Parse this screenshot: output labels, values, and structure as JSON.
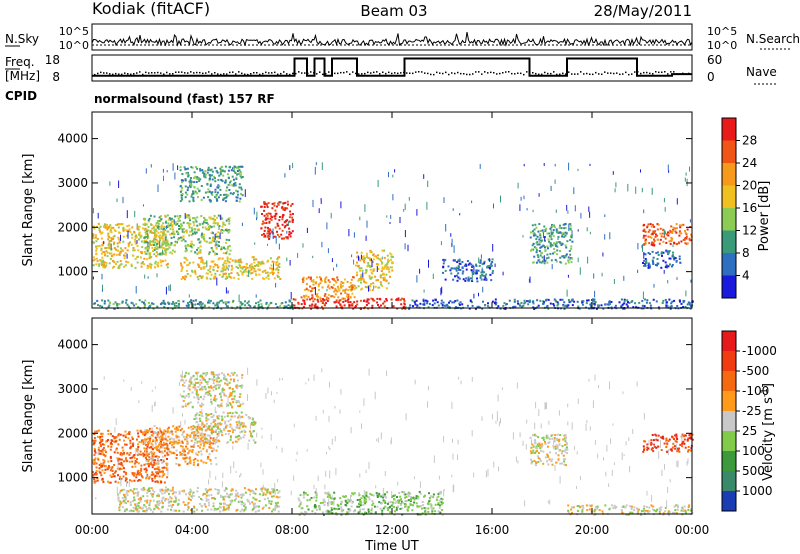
{
  "header": {
    "station": "Kodiak (fitACF)",
    "beam": "Beam 03",
    "date": "28/May/2011"
  },
  "nsky_panel": {
    "left_label": "N.Sky",
    "left_ticks": [
      "10^5",
      "10^0"
    ],
    "right_label": "N.Search",
    "right_ticks": [
      "10^5",
      "10^0"
    ]
  },
  "freq_panel": {
    "left_label_1": "Freq.",
    "left_label_2": "[MHz]",
    "left_ticks": [
      "18",
      "8"
    ],
    "right_label": "Nave",
    "right_ticks": [
      "60",
      "0"
    ],
    "cpid_label": "CPID",
    "program": "normalsound (fast) 157 RF",
    "nave_steps": [
      {
        "t0": 0.0,
        "t1": 8.1,
        "v": 12
      },
      {
        "t0": 8.1,
        "t1": 8.6,
        "v": 52
      },
      {
        "t0": 8.6,
        "t1": 8.9,
        "v": 12
      },
      {
        "t0": 8.9,
        "t1": 9.3,
        "v": 52
      },
      {
        "t0": 9.3,
        "t1": 9.6,
        "v": 12
      },
      {
        "t0": 9.6,
        "t1": 10.6,
        "v": 52
      },
      {
        "t0": 10.6,
        "t1": 12.5,
        "v": 12
      },
      {
        "t0": 12.5,
        "t1": 17.5,
        "v": 52
      },
      {
        "t0": 17.5,
        "t1": 19.0,
        "v": 12
      },
      {
        "t0": 19.0,
        "t1": 21.8,
        "v": 52
      },
      {
        "t0": 21.8,
        "t1": 23.2,
        "v": 12
      },
      {
        "t0": 23.2,
        "t1": 24.0,
        "v": 16
      }
    ]
  },
  "chart_data": [
    {
      "type": "heatmap",
      "xlabel": "",
      "ylabel": "Slant Range [km]",
      "x_ticks": [
        "00:00",
        "04:00",
        "08:00",
        "12:00",
        "16:00",
        "20:00",
        "00:00"
      ],
      "xlim": [
        0,
        24
      ],
      "ylim": [
        180,
        4600
      ],
      "y_ticks": [
        "1000",
        "2000",
        "3000",
        "4000"
      ],
      "colorbar": {
        "label": "Power [dB]",
        "ticks": [
          "4",
          "8",
          "12",
          "16",
          "20",
          "24",
          "28"
        ],
        "colors": [
          "#1a1adc",
          "#2f6fc1",
          "#3a9a7a",
          "#8ccc55",
          "#f0c020",
          "#f59a1a",
          "#f05515",
          "#e81a1a"
        ]
      },
      "regions": [
        {
          "t0": 0.0,
          "t1": 8.0,
          "r0": 180,
          "r1": 380,
          "level": 2
        },
        {
          "t0": 8.0,
          "t1": 12.5,
          "r0": 180,
          "r1": 420,
          "level": 7
        },
        {
          "t0": 12.5,
          "t1": 24.0,
          "r0": 180,
          "r1": 400,
          "level": 1
        },
        {
          "t0": 0.0,
          "t1": 3.0,
          "r0": 1100,
          "r1": 2100,
          "level": 4
        },
        {
          "t0": 2.0,
          "t1": 5.5,
          "r0": 1400,
          "r1": 2300,
          "level": 3
        },
        {
          "t0": 3.5,
          "t1": 7.5,
          "r0": 850,
          "r1": 1350,
          "level": 4
        },
        {
          "t0": 6.7,
          "t1": 8.0,
          "r0": 1750,
          "r1": 2600,
          "level": 7
        },
        {
          "t0": 3.5,
          "t1": 6.0,
          "r0": 2600,
          "r1": 3400,
          "level": 2
        },
        {
          "t0": 8.3,
          "t1": 10.5,
          "r0": 400,
          "r1": 900,
          "level": 5
        },
        {
          "t0": 10.5,
          "t1": 12.0,
          "r0": 600,
          "r1": 1500,
          "level": 4
        },
        {
          "t0": 14.0,
          "t1": 16.0,
          "r0": 800,
          "r1": 1300,
          "level": 1
        },
        {
          "t0": 17.5,
          "t1": 19.2,
          "r0": 1200,
          "r1": 2100,
          "level": 2
        },
        {
          "t0": 22.0,
          "t1": 24.0,
          "r0": 1600,
          "r1": 2100,
          "level": 6
        },
        {
          "t0": 22.0,
          "t1": 23.5,
          "r0": 1100,
          "r1": 1500,
          "level": 1
        }
      ]
    },
    {
      "type": "heatmap",
      "xlabel": "Time UT",
      "ylabel": "Slant Range [km]",
      "x_ticks": [
        "00:00",
        "04:00",
        "08:00",
        "12:00",
        "16:00",
        "20:00",
        "00:00"
      ],
      "xlim": [
        0,
        24
      ],
      "ylim": [
        180,
        4600
      ],
      "y_ticks": [
        "1000",
        "2000",
        "3000",
        "4000"
      ],
      "colorbar": {
        "label": "Velocity [m s",
        "label_sup": "-1",
        "label_end": "]",
        "ticks": [
          "1000",
          "500",
          "100",
          "25",
          "-25",
          "-100",
          "-500",
          "-1000"
        ],
        "colors": [
          "#1a3cb4",
          "#3a8a6a",
          "#3c9a3c",
          "#80cc4a",
          "#c8c8c8",
          "#ff9a1a",
          "#f56a10",
          "#f03c10",
          "#e61a1a"
        ]
      },
      "regions": [
        {
          "t0": 0.0,
          "t1": 3.0,
          "r0": 900,
          "r1": 2100,
          "level": 6
        },
        {
          "t0": 2.0,
          "t1": 5.0,
          "r0": 1300,
          "r1": 2200,
          "level": 5
        },
        {
          "t0": 4.0,
          "t1": 6.5,
          "r0": 1800,
          "r1": 2500,
          "level": 4
        },
        {
          "t0": 1.0,
          "t1": 7.5,
          "r0": 250,
          "r1": 800,
          "level": 4
        },
        {
          "t0": 3.5,
          "t1": 6.0,
          "r0": 2600,
          "r1": 3400,
          "level": 4
        },
        {
          "t0": 8.2,
          "t1": 14.0,
          "r0": 180,
          "r1": 700,
          "level": 3
        },
        {
          "t0": 17.5,
          "t1": 19.0,
          "r0": 1300,
          "r1": 2000,
          "level": 4
        },
        {
          "t0": 22.0,
          "t1": 24.0,
          "r0": 1600,
          "r1": 2000,
          "level": 7
        },
        {
          "t0": 19.0,
          "t1": 24.0,
          "r0": 180,
          "r1": 400,
          "level": 4
        }
      ]
    }
  ]
}
